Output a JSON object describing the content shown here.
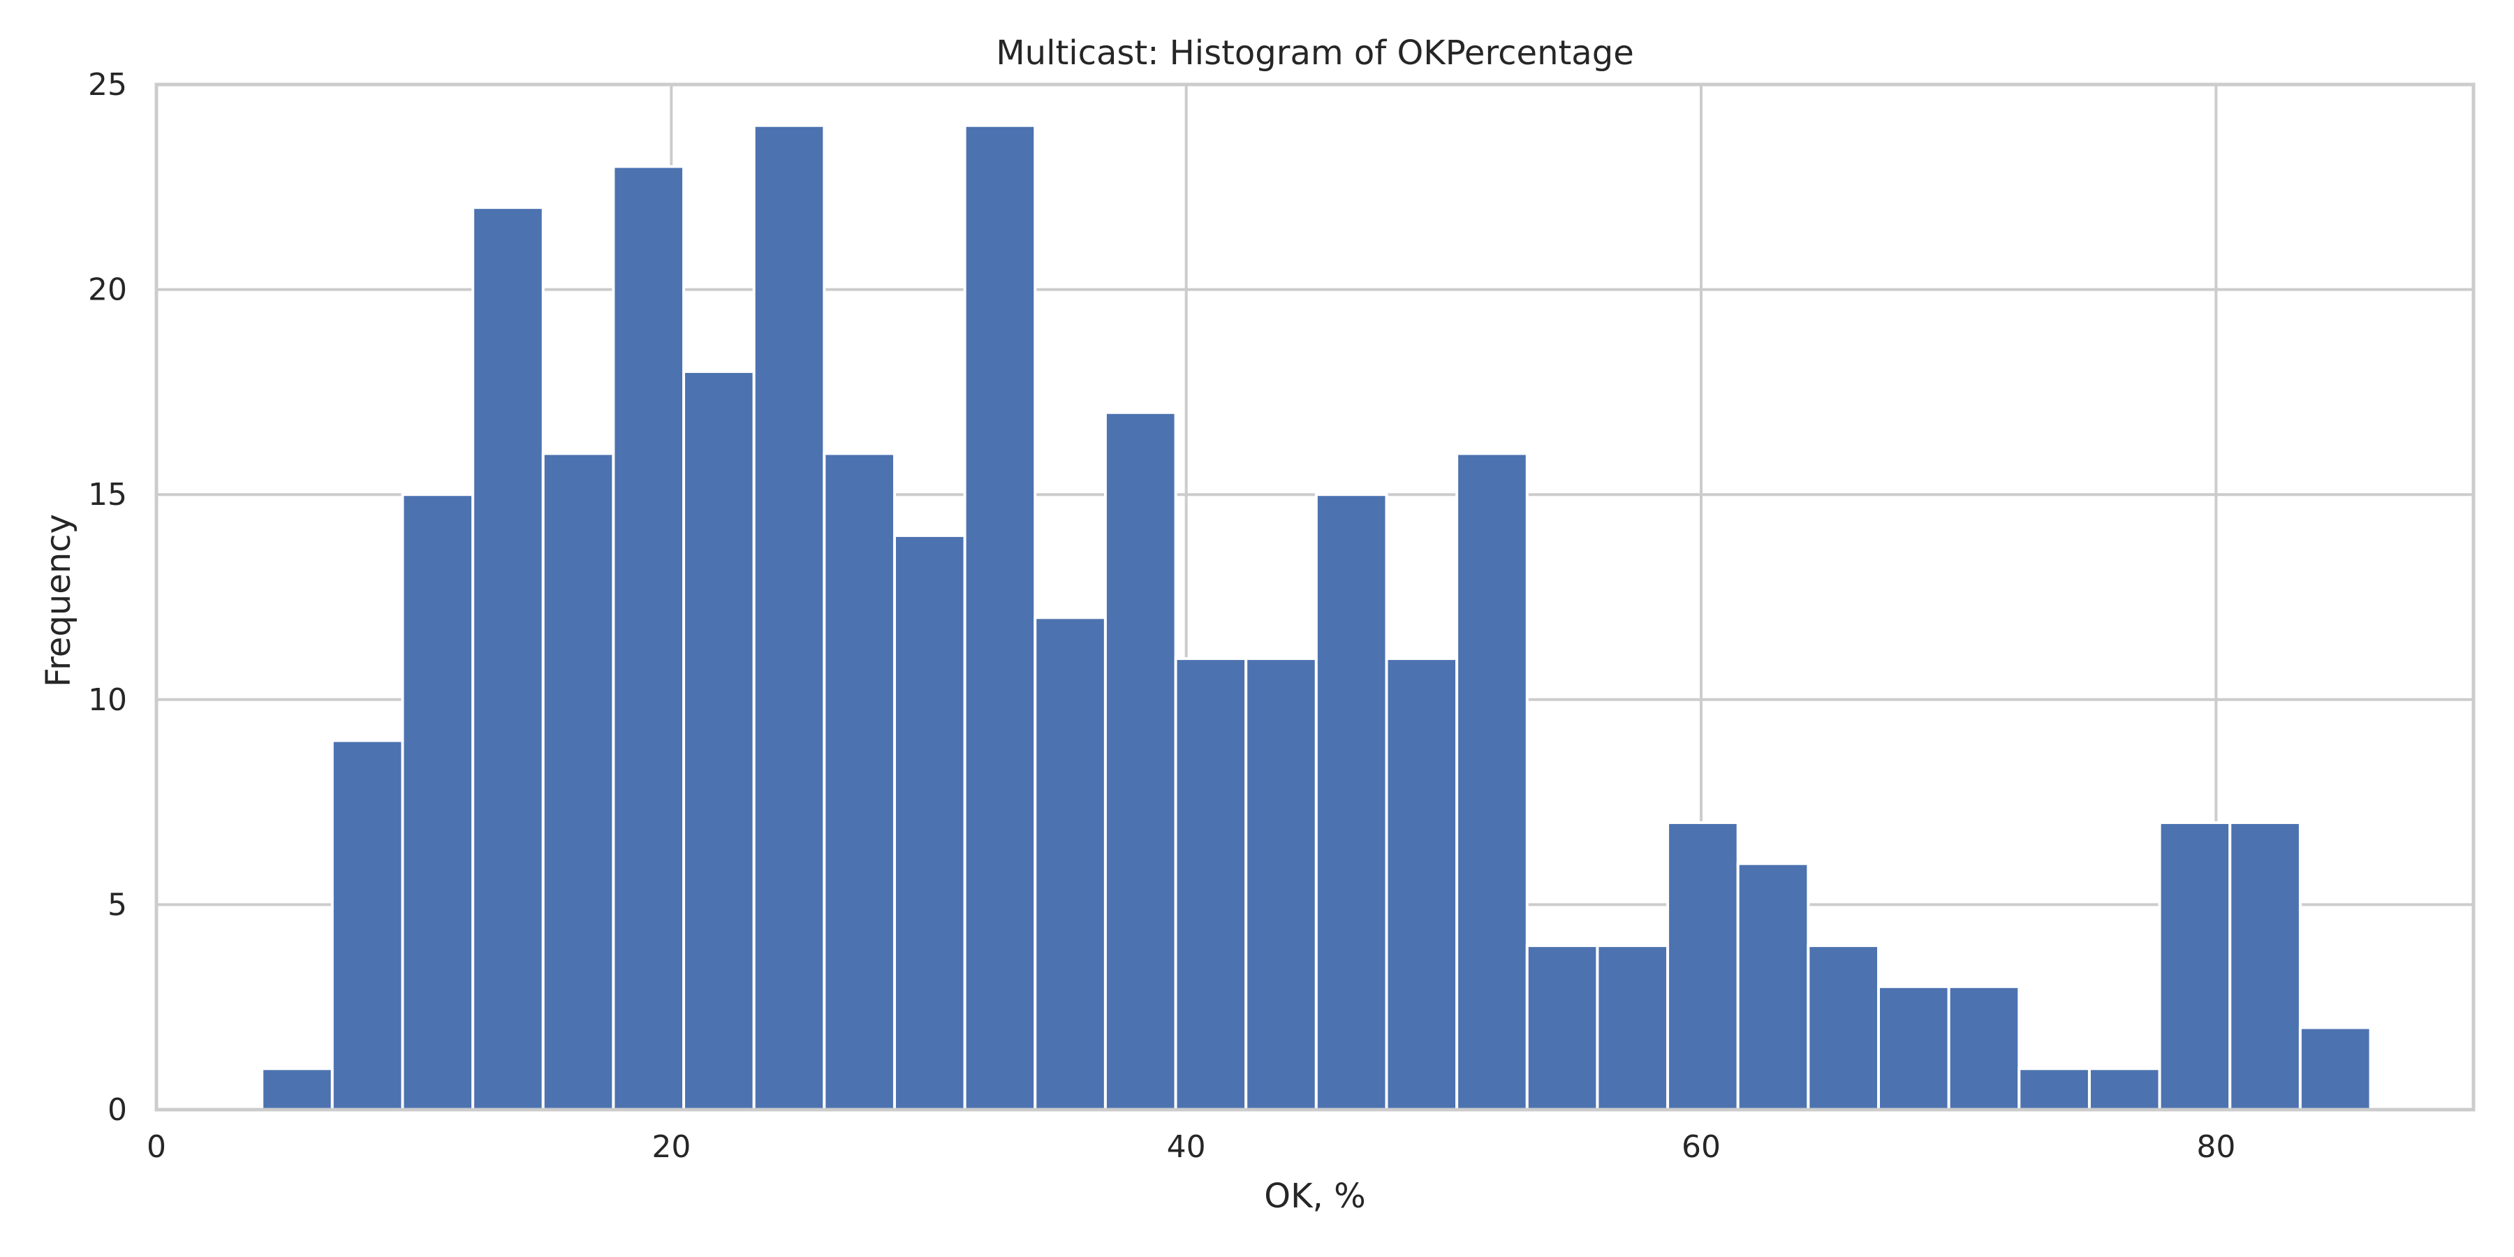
{
  "chart_data": {
    "type": "bar",
    "title": "Multicast: Histogram of OKPercentage",
    "xlabel": "OK, %",
    "ylabel": "Frequency",
    "xlim": [
      0,
      90
    ],
    "ylim": [
      0,
      25
    ],
    "xticks": [
      0,
      20,
      40,
      60,
      80
    ],
    "yticks": [
      0,
      5,
      10,
      15,
      20,
      25
    ],
    "grid": true,
    "bar_color": "#4C72B0",
    "bin_edges": [
      4.1,
      6.83,
      9.56,
      12.29,
      15.02,
      17.75,
      20.48,
      23.21,
      25.94,
      28.67,
      31.4,
      34.13,
      36.86,
      39.59,
      42.32,
      45.05,
      47.78,
      50.51,
      53.24,
      55.97,
      58.7,
      61.43,
      64.16,
      66.89,
      69.62,
      72.35,
      75.08,
      77.81,
      80.54,
      83.27,
      86.0
    ],
    "counts": [
      1,
      9,
      15,
      22,
      16,
      23,
      18,
      24,
      16,
      14,
      24,
      12,
      17,
      11,
      11,
      15,
      11,
      16,
      4,
      4,
      7,
      6,
      4,
      3,
      3,
      1,
      1,
      7,
      7,
      2
    ]
  }
}
